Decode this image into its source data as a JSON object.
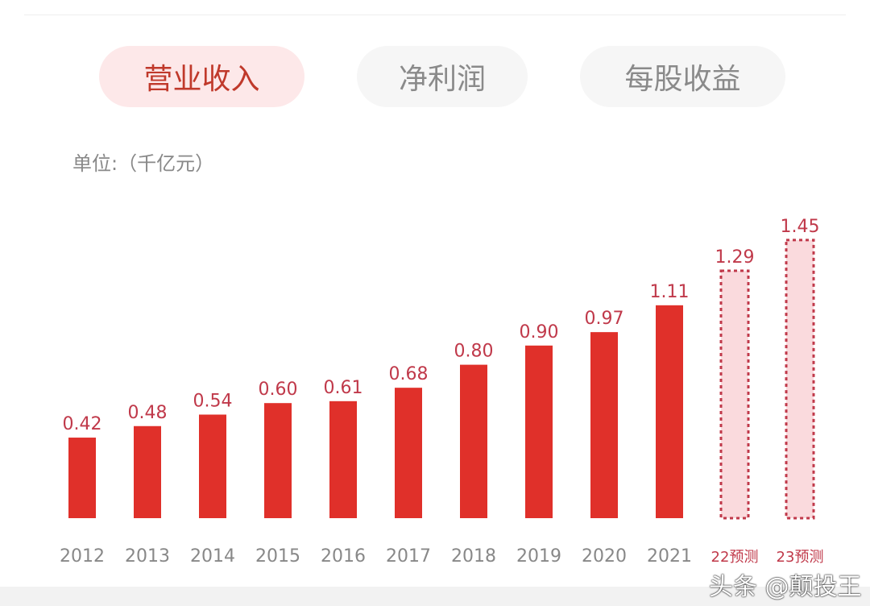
{
  "tabs": [
    {
      "label": "营业收入",
      "active": true
    },
    {
      "label": "净利润",
      "active": false
    },
    {
      "label": "每股收益",
      "active": false
    }
  ],
  "unit_label": "单位:（千亿元）",
  "watermark": "头条 @颠投王",
  "colors": {
    "actual": "#e0302a",
    "forecast_fill": "#fadadd",
    "forecast_border": "#c0394a",
    "label": "#c0394a",
    "axis_text": "#888888"
  },
  "chart_data": {
    "type": "bar",
    "categories": [
      "2012",
      "2013",
      "2014",
      "2015",
      "2016",
      "2017",
      "2018",
      "2019",
      "2020",
      "2021",
      "22预测",
      "23预测"
    ],
    "values": [
      0.42,
      0.48,
      0.54,
      0.6,
      0.61,
      0.68,
      0.8,
      0.9,
      0.97,
      1.11,
      1.29,
      1.45
    ],
    "value_labels": [
      "0.42",
      "0.48",
      "0.54",
      "0.60",
      "0.61",
      "0.68",
      "0.80",
      "0.90",
      "0.97",
      "1.11",
      "1.29",
      "1.45"
    ],
    "forecast": [
      false,
      false,
      false,
      false,
      false,
      false,
      false,
      false,
      false,
      false,
      true,
      true
    ],
    "ylim": [
      0,
      1.5
    ],
    "grid": false
  }
}
